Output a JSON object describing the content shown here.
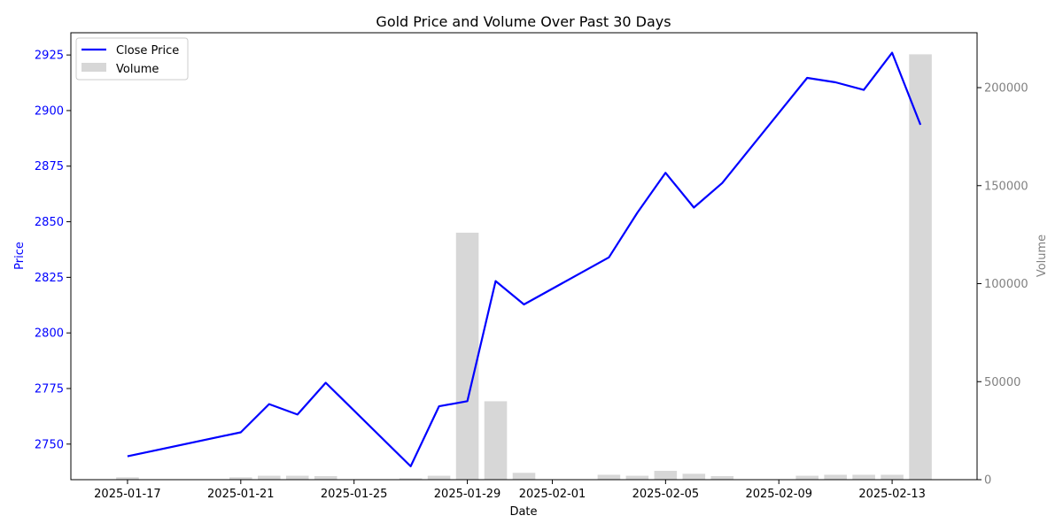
{
  "chart_data": {
    "type": "bar+line",
    "title": "Gold Price and Volume Over Past 30 Days",
    "xlabel": "Date",
    "ylabel_left": "Price",
    "ylabel_right": "Volume",
    "x_range": [
      "2025-01-15",
      "2025-02-16"
    ],
    "y_left_range": [
      2734,
      2935
    ],
    "y_right_range": [
      0,
      228000
    ],
    "x_ticks": [
      "2025-01-17",
      "2025-01-21",
      "2025-01-25",
      "2025-01-29",
      "2025-02-01",
      "2025-02-05",
      "2025-02-09",
      "2025-02-13"
    ],
    "y_left_ticks": [
      2750,
      2775,
      2800,
      2825,
      2850,
      2875,
      2900,
      2925
    ],
    "y_right_ticks": [
      0,
      50000,
      100000,
      150000,
      200000
    ],
    "y_right_tick_labels": [
      "0",
      "50000",
      "100000",
      "150000",
      "200000"
    ],
    "grid": false,
    "legend_position": "top-left",
    "series": [
      {
        "name": "Close Price",
        "kind": "line",
        "color": "#0000ff",
        "points": [
          [
            "2025-01-17",
            2744.5
          ],
          [
            "2025-01-21",
            2755.3
          ],
          [
            "2025-01-22",
            2768.0
          ],
          [
            "2025-01-23",
            2763.3
          ],
          [
            "2025-01-24",
            2777.6
          ],
          [
            "2025-01-27",
            2740.0
          ],
          [
            "2025-01-28",
            2767.0
          ],
          [
            "2025-01-29",
            2769.3
          ],
          [
            "2025-01-30",
            2823.3
          ],
          [
            "2025-01-31",
            2812.8
          ],
          [
            "2025-02-03",
            2834.0
          ],
          [
            "2025-02-04",
            2854.0
          ],
          [
            "2025-02-05",
            2872.0
          ],
          [
            "2025-02-06",
            2856.4
          ],
          [
            "2025-02-07",
            2867.4
          ],
          [
            "2025-02-10",
            2914.7
          ],
          [
            "2025-02-11",
            2912.7
          ],
          [
            "2025-02-12",
            2909.3
          ],
          [
            "2025-02-13",
            2926.0
          ],
          [
            "2025-02-14",
            2893.6
          ]
        ]
      },
      {
        "name": "Volume",
        "kind": "bar",
        "color": "#d7d7d7",
        "points": [
          [
            "2025-01-17",
            1200
          ],
          [
            "2025-01-21",
            1200
          ],
          [
            "2025-01-22",
            2000
          ],
          [
            "2025-01-23",
            2000
          ],
          [
            "2025-01-24",
            1800
          ],
          [
            "2025-01-27",
            700
          ],
          [
            "2025-01-28",
            2000
          ],
          [
            "2025-01-29",
            126000
          ],
          [
            "2025-01-30",
            40000
          ],
          [
            "2025-01-31",
            3500
          ],
          [
            "2025-02-03",
            2500
          ],
          [
            "2025-02-04",
            2000
          ],
          [
            "2025-02-05",
            4500
          ],
          [
            "2025-02-06",
            3000
          ],
          [
            "2025-02-07",
            1800
          ],
          [
            "2025-02-10",
            2000
          ],
          [
            "2025-02-11",
            2500
          ],
          [
            "2025-02-12",
            2500
          ],
          [
            "2025-02-13",
            2500
          ],
          [
            "2025-02-14",
            217000
          ]
        ]
      }
    ],
    "colors": {
      "left_axis": "#0000ff",
      "right_axis": "#808080",
      "line": "#0000ff",
      "bar": "#d7d7d7"
    }
  }
}
